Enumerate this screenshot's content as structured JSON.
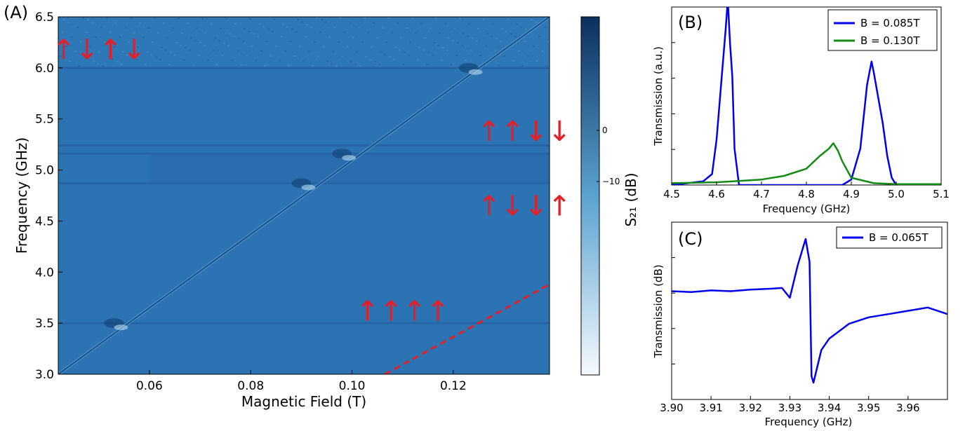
{
  "figure": {
    "panels": [
      "(A)",
      "(B)",
      "(C)"
    ],
    "colorbar": {
      "label": "S₂₁ (dB)",
      "ticks": [
        "0",
        "−10"
      ],
      "colors": [
        "#0b305e",
        "#5aa2d0",
        "#f6fafe"
      ]
    }
  },
  "chart_data": [
    {
      "type": "heatmap",
      "title": "",
      "xlabel": "Magnetic Field (T)",
      "ylabel": "Frequency (GHz)",
      "xlim": [
        0.042,
        0.139
      ],
      "ylim": [
        3.0,
        6.5
      ],
      "xticks": [
        "0.06",
        "0.08",
        "0.10",
        "0.12"
      ],
      "yticks": [
        "3.0",
        "3.5",
        "4.0",
        "4.5",
        "5.0",
        "5.5",
        "6.0",
        "6.5"
      ],
      "background_color": "#2b73b3",
      "diagonal_mode": {
        "x": [
          0.042,
          0.139
        ],
        "y": [
          3.0,
          6.5
        ]
      },
      "dispersive_features_frequencies_GHz": [
        3.5,
        4.87,
        5.16,
        5.24,
        6.0
      ],
      "anticrossings": [
        {
          "x": 0.053,
          "y": 3.5
        },
        {
          "x": 0.09,
          "y": 4.87
        },
        {
          "x": 0.098,
          "y": 5.16
        },
        {
          "x": 0.123,
          "y": 6.0
        }
      ],
      "dashed_line": {
        "x": [
          0.1065,
          0.139
        ],
        "y": [
          3.0,
          3.88
        ],
        "color": "#e3202a"
      },
      "spin_labels": [
        {
          "text": "↑↓↑↓",
          "x": 0.05,
          "y": 6.18
        },
        {
          "text": "↑↑↓↓",
          "x": 0.134,
          "y": 5.38
        },
        {
          "text": "↑↓↓↑",
          "x": 0.134,
          "y": 4.65
        },
        {
          "text": "↑↑↑↑",
          "x": 0.11,
          "y": 3.62
        }
      ]
    },
    {
      "type": "line",
      "xlabel": "Frequency (GHz)",
      "ylabel": "Transmission (a.u.)",
      "xlim": [
        4.5,
        5.1
      ],
      "xticks": [
        "4.5",
        "4.6",
        "4.7",
        "4.8",
        "4.9",
        "5.0",
        "5.1"
      ],
      "ylim": [
        0,
        1
      ],
      "legend": "top-right",
      "series": [
        {
          "name": "B = 0.085T",
          "color": "#0000ee",
          "x": [
            4.5,
            4.57,
            4.59,
            4.6,
            4.61,
            4.62,
            4.625,
            4.63,
            4.635,
            4.64,
            4.65,
            4.66,
            4.7,
            4.8,
            4.88,
            4.9,
            4.92,
            4.935,
            4.945,
            4.95,
            4.96,
            4.97,
            4.98,
            4.99,
            5.0,
            5.05,
            5.1
          ],
          "y": [
            0.0,
            0.02,
            0.06,
            0.25,
            0.55,
            0.85,
            1.02,
            0.78,
            0.6,
            0.2,
            0.0,
            0.0,
            0.0,
            0.0,
            0.0,
            0.03,
            0.2,
            0.55,
            0.68,
            0.62,
            0.48,
            0.34,
            0.16,
            0.04,
            0.0,
            0.0,
            0.0
          ]
        },
        {
          "name": "B = 0.130T",
          "color": "#138a13",
          "x": [
            4.5,
            4.6,
            4.7,
            4.75,
            4.8,
            4.83,
            4.85,
            4.86,
            4.87,
            4.88,
            4.9,
            4.95,
            5.0,
            5.1
          ],
          "y": [
            0.01,
            0.015,
            0.03,
            0.05,
            0.09,
            0.16,
            0.2,
            0.23,
            0.19,
            0.13,
            0.04,
            0.01,
            0.005,
            0.005
          ]
        }
      ]
    },
    {
      "type": "line",
      "xlabel": "Frequency (GHz)",
      "ylabel": "Transmission (dB)",
      "xlim": [
        3.9,
        3.97
      ],
      "xticks": [
        "3.90",
        "3.91",
        "3.92",
        "3.93",
        "3.94",
        "3.95",
        "3.96"
      ],
      "ylim": [
        0,
        1
      ],
      "legend": "top-right",
      "series": [
        {
          "name": "B = 0.065T",
          "color": "#0000ee",
          "x": [
            3.9,
            3.905,
            3.91,
            3.915,
            3.92,
            3.925,
            3.928,
            3.93,
            3.932,
            3.934,
            3.935,
            3.9355,
            3.936,
            3.937,
            3.938,
            3.94,
            3.945,
            3.95,
            3.955,
            3.96,
            3.965,
            3.97
          ],
          "y": [
            0.62,
            0.615,
            0.625,
            0.62,
            0.63,
            0.635,
            0.64,
            0.58,
            0.78,
            0.94,
            0.8,
            0.1,
            0.06,
            0.16,
            0.26,
            0.33,
            0.42,
            0.46,
            0.48,
            0.5,
            0.52,
            0.48
          ]
        }
      ]
    }
  ]
}
